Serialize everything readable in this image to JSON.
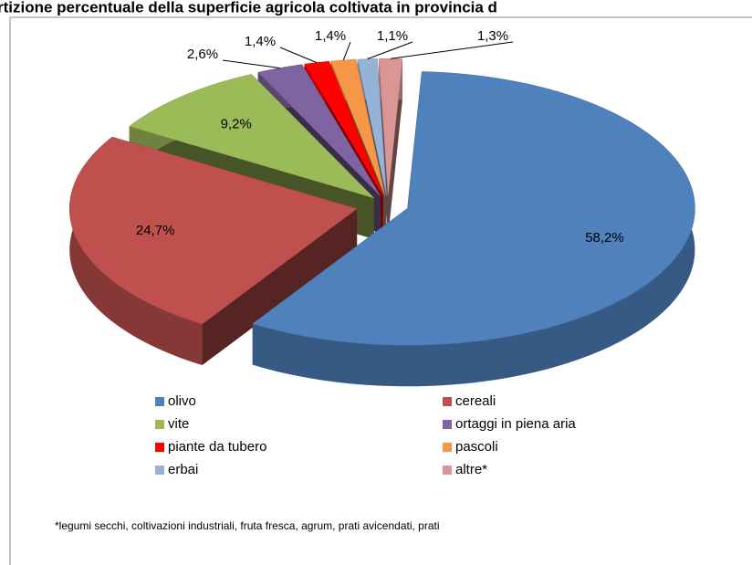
{
  "chart_data": {
    "type": "pie3d",
    "title": "rtizione percentuale della superficie agricola coltivata in provincia d",
    "categories": [
      "olivo",
      "cereali",
      "vite",
      "ortaggi in piena aria",
      "piante da tubero",
      "pascoli",
      "erbai",
      "altre*"
    ],
    "values": [
      58.2,
      24.7,
      9.2,
      2.6,
      1.4,
      1.4,
      1.1,
      1.3
    ],
    "value_labels": [
      "58,2%",
      "24,7%",
      "9,2%",
      "2,6%",
      "1,4%",
      "1,4%",
      "1,1%",
      "1,3%"
    ],
    "colors": [
      "#4f81bd",
      "#c0504d",
      "#9bbb59",
      "#8064a2",
      "#ff0000",
      "#f79646",
      "#95b3d7",
      "#d99694"
    ],
    "footnote": "*legumi secchi, coltivazioni industriali, fruta fresca, agrum, prati avicendati, prati"
  }
}
